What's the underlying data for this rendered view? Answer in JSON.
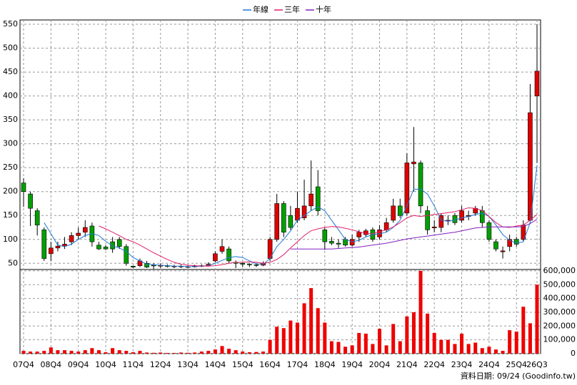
{
  "chart_data": {
    "type": "candlestick",
    "source": "資料日期: 09/24 (Goodinfo.tw)",
    "categories": [
      "07Q4",
      null,
      null,
      null,
      "08Q4",
      null,
      null,
      null,
      "09Q4",
      null,
      null,
      null,
      "10Q4",
      null,
      null,
      null,
      "11Q4",
      null,
      null,
      null,
      "12Q4",
      null,
      null,
      null,
      "13Q4",
      null,
      null,
      null,
      "14Q4",
      null,
      null,
      null,
      "15Q4",
      null,
      null,
      null,
      "16Q4",
      null,
      null,
      null,
      "17Q4",
      null,
      null,
      null,
      "18Q4",
      null,
      null,
      null,
      "19Q4",
      null,
      null,
      null,
      "20Q4",
      null,
      null,
      null,
      "21Q4",
      null,
      null,
      null,
      "22Q4",
      null,
      null,
      null,
      "23Q4",
      null,
      null,
      null,
      "24Q4",
      null,
      null,
      null,
      "25Q4",
      null,
      null,
      "26Q3"
    ],
    "open": [
      218,
      195,
      160,
      120,
      70,
      82,
      86,
      95,
      108,
      115,
      128,
      88,
      84,
      95,
      100,
      85,
      44,
      45,
      50,
      46,
      44,
      45,
      43,
      44,
      42,
      43,
      44,
      45,
      55,
      75,
      80,
      52,
      50,
      48,
      47,
      46,
      60,
      100,
      175,
      150,
      140,
      145,
      170,
      210,
      120,
      96,
      92,
      100,
      88,
      105,
      110,
      120,
      105,
      120,
      140,
      170,
      155,
      258,
      260,
      160,
      124,
      125,
      138,
      150,
      140,
      148,
      155,
      160,
      135,
      95,
      74,
      85,
      100,
      100,
      140,
      400
    ],
    "high": [
      228,
      200,
      165,
      125,
      95,
      95,
      105,
      115,
      125,
      140,
      135,
      95,
      88,
      105,
      105,
      90,
      45,
      60,
      55,
      50,
      50,
      48,
      47,
      47,
      46,
      47,
      48,
      52,
      75,
      100,
      85,
      56,
      52,
      50,
      49,
      54,
      105,
      195,
      180,
      170,
      200,
      225,
      265,
      245,
      125,
      105,
      100,
      105,
      110,
      120,
      122,
      125,
      130,
      145,
      185,
      185,
      280,
      335,
      265,
      170,
      140,
      155,
      150,
      155,
      170,
      160,
      170,
      170,
      140,
      100,
      85,
      110,
      105,
      140,
      425,
      550
    ],
    "low": [
      168,
      128,
      108,
      55,
      55,
      75,
      80,
      88,
      100,
      105,
      85,
      78,
      78,
      72,
      80,
      45,
      40,
      42,
      40,
      38,
      40,
      41,
      40,
      40,
      40,
      41,
      42,
      43,
      52,
      70,
      50,
      40,
      42,
      42,
      42,
      44,
      55,
      95,
      105,
      120,
      135,
      140,
      160,
      150,
      78,
      88,
      82,
      85,
      85,
      95,
      105,
      95,
      100,
      115,
      135,
      145,
      150,
      200,
      155,
      110,
      115,
      115,
      130,
      130,
      135,
      140,
      150,
      125,
      95,
      75,
      60,
      75,
      85,
      95,
      135,
      260
    ],
    "close": [
      200,
      165,
      130,
      60,
      82,
      86,
      90,
      108,
      113,
      125,
      95,
      80,
      80,
      80,
      85,
      50,
      42,
      55,
      42,
      45,
      46,
      44,
      44,
      43,
      43,
      44,
      45,
      48,
      70,
      85,
      55,
      50,
      48,
      47,
      46,
      50,
      100,
      175,
      115,
      125,
      165,
      170,
      195,
      160,
      95,
      92,
      90,
      88,
      100,
      115,
      118,
      100,
      120,
      135,
      170,
      150,
      260,
      262,
      170,
      120,
      126,
      150,
      140,
      135,
      160,
      150,
      165,
      135,
      100,
      80,
      76,
      100,
      90,
      130,
      365,
      452
    ],
    "volume": [
      20000,
      15000,
      15000,
      20000,
      45000,
      25000,
      25000,
      20000,
      15000,
      25000,
      40000,
      25000,
      10000,
      40000,
      25000,
      20000,
      10000,
      20000,
      8000,
      6000,
      8000,
      5000,
      5000,
      8000,
      6000,
      8000,
      15000,
      20000,
      30000,
      55000,
      35000,
      25000,
      15000,
      10000,
      12000,
      15000,
      100000,
      195000,
      185000,
      240000,
      225000,
      365000,
      475000,
      330000,
      225000,
      90000,
      85000,
      50000,
      60000,
      150000,
      145000,
      70000,
      180000,
      60000,
      215000,
      90000,
      270000,
      300000,
      600000,
      290000,
      150000,
      100000,
      100000,
      70000,
      145000,
      70000,
      80000,
      40000,
      50000,
      30000,
      20000,
      170000,
      160000,
      340000,
      220000,
      500000
    ],
    "up_color": "#e00000",
    "down_color": "#00a000",
    "volume_color": "#ee0000",
    "series": [
      {
        "name": "年線",
        "color": "#1f78d0",
        "values": [
          null,
          null,
          null,
          135,
          112,
          88,
          85,
          90,
          100,
          108,
          112,
          108,
          96,
          86,
          82,
          75,
          62,
          55,
          48,
          47,
          46,
          45,
          44,
          44,
          43,
          43,
          44,
          45,
          50,
          56,
          62,
          64,
          62,
          55,
          49,
          48,
          60,
          85,
          100,
          118,
          140,
          150,
          160,
          168,
          160,
          140,
          120,
          100,
          95,
          98,
          105,
          110,
          112,
          115,
          125,
          140,
          170,
          205,
          205,
          195,
          170,
          140,
          138,
          140,
          145,
          148,
          152,
          155,
          148,
          130,
          110,
          98,
          92,
          95,
          135,
          255
        ]
      },
      {
        "name": "三年",
        "color": "#e0206a",
        "values": [
          null,
          null,
          null,
          null,
          null,
          null,
          null,
          null,
          null,
          null,
          null,
          128,
          122,
          115,
          108,
          100,
          95,
          88,
          80,
          72,
          65,
          58,
          52,
          48,
          46,
          45,
          44,
          44,
          45,
          47,
          50,
          52,
          52,
          53,
          52,
          50,
          52,
          58,
          68,
          82,
          95,
          108,
          118,
          122,
          125,
          127,
          126,
          123,
          120,
          116,
          112,
          112,
          116,
          120,
          126,
          135,
          145,
          150,
          148,
          150,
          152,
          154,
          156,
          158,
          162,
          166,
          165,
          160,
          148,
          135,
          126,
          125,
          128,
          130,
          140,
          152
        ]
      },
      {
        "name": "十年",
        "color": "#8020c0",
        "values": [
          null,
          null,
          null,
          null,
          null,
          null,
          null,
          null,
          null,
          null,
          null,
          null,
          null,
          null,
          null,
          null,
          null,
          null,
          null,
          null,
          null,
          null,
          null,
          null,
          null,
          null,
          null,
          null,
          null,
          null,
          null,
          null,
          null,
          null,
          null,
          null,
          null,
          null,
          null,
          80,
          80,
          80,
          80,
          80,
          80,
          80,
          81,
          82,
          83,
          84,
          86,
          88,
          90,
          92,
          95,
          98,
          101,
          103,
          105,
          107,
          109,
          111,
          113,
          115,
          118,
          121,
          124,
          125,
          126,
          126,
          126,
          126,
          126,
          127,
          133,
          142
        ]
      }
    ],
    "ylim": [
      37,
      559
    ],
    "yticks": [
      50,
      100,
      150,
      200,
      250,
      300,
      350,
      400,
      450,
      500,
      550
    ],
    "y2lim": [
      0,
      610000
    ],
    "y2ticks": [
      0,
      {
        "value": 100000,
        "label": "100,000"
      },
      {
        "value": 200000,
        "label": "200,000"
      },
      {
        "value": 300000,
        "label": "300,000"
      },
      {
        "value": 400000,
        "label": "400,000"
      },
      {
        "value": 500000,
        "label": "500,000"
      },
      {
        "value": 600000,
        "label": "600,000"
      }
    ],
    "grid": true
  }
}
